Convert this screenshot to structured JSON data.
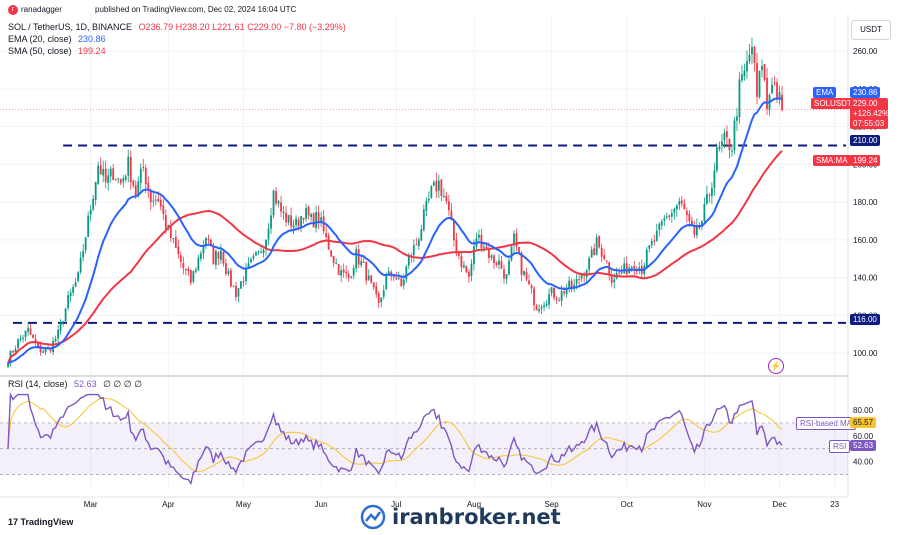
{
  "header": {
    "author": "ranadagger",
    "published": "published on TradingView.com, Dec 02, 2024 16:04 UTC"
  },
  "legend": {
    "symbol": "SOL / TetherUS, 1D, BINANCE",
    "open": "O236.79",
    "high": "H238.20",
    "low": "L221.61",
    "close": "C229.00",
    "change": "−7.80 (−3.29%)",
    "ema_label": "EMA (20, close)",
    "ema_value": "230.86",
    "sma_label": "SMA (50, close)",
    "sma_value": "199.24",
    "rsi_label": "RSI (14, close)",
    "rsi_value": "52.63",
    "rsi_extra": "∅ ∅ ∅ ∅"
  },
  "currency": "USDT",
  "tags": {
    "ema_name": "EMA",
    "ema_value": "230.86",
    "symbol_name": "SOLUSDT",
    "price": "229.00",
    "pct": "+126.42%",
    "countdown": "07:55:03",
    "level_upper": "210.00",
    "sma_name": "SMA:MA",
    "sma_value": "199.24",
    "level_lower": "116.00",
    "rsi_ma_name": "RSI-based MA",
    "rsi_ma_value": "65.57",
    "rsi_name": "RSI",
    "rsi_value": "52.63"
  },
  "watermark": "iranbroker.net",
  "tv_logo": "TradingView",
  "colors": {
    "up": "#089981",
    "down": "#f23645",
    "ema": "#2962ff",
    "sma": "#f23645",
    "rsi": "#7e57c2",
    "rsi_ma": "#f7c430",
    "level": "#0b1b7f",
    "band": "#7e57c2"
  },
  "chart_data": [
    {
      "type": "candlestick",
      "title": "SOL / TetherUS, 1D, BINANCE",
      "ylim": [
        90,
        268
      ],
      "y_ticks": [
        100,
        120,
        140,
        160,
        180,
        200,
        220,
        240,
        260
      ],
      "x_ticks": [
        {
          "day": 33,
          "label": "Mar"
        },
        {
          "day": 64,
          "label": "Apr"
        },
        {
          "day": 94,
          "label": "May"
        },
        {
          "day": 125,
          "label": "Jun"
        },
        {
          "day": 155,
          "label": "Jul"
        },
        {
          "day": 186,
          "label": "Aug"
        },
        {
          "day": 217,
          "label": "Sep"
        },
        {
          "day": 247,
          "label": "Oct"
        },
        {
          "day": 278,
          "label": "Nov"
        },
        {
          "day": 308,
          "label": "Dec"
        },
        {
          "day": 330,
          "label": "23"
        }
      ],
      "horizontal_levels": [
        210,
        116
      ],
      "anchors": [
        [
          0,
          97
        ],
        [
          4,
          106
        ],
        [
          8,
          112
        ],
        [
          12,
          102
        ],
        [
          16,
          101
        ],
        [
          20,
          110
        ],
        [
          24,
          128
        ],
        [
          28,
          140
        ],
        [
          32,
          170
        ],
        [
          36,
          200
        ],
        [
          39,
          190
        ],
        [
          42,
          196
        ],
        [
          45,
          190
        ],
        [
          48,
          200
        ],
        [
          51,
          185
        ],
        [
          54,
          198
        ],
        [
          57,
          182
        ],
        [
          60,
          182
        ],
        [
          63,
          168
        ],
        [
          66,
          158
        ],
        [
          70,
          145
        ],
        [
          73,
          138
        ],
        [
          76,
          150
        ],
        [
          79,
          162
        ],
        [
          82,
          150
        ],
        [
          85,
          155
        ],
        [
          88,
          140
        ],
        [
          91,
          132
        ],
        [
          94,
          140
        ],
        [
          97,
          147
        ],
        [
          100,
          152
        ],
        [
          103,
          162
        ],
        [
          106,
          185
        ],
        [
          109,
          175
        ],
        [
          112,
          170
        ],
        [
          115,
          168
        ],
        [
          118,
          175
        ],
        [
          121,
          170
        ],
        [
          124,
          172
        ],
        [
          127,
          160
        ],
        [
          130,
          150
        ],
        [
          133,
          142
        ],
        [
          136,
          140
        ],
        [
          139,
          152
        ],
        [
          142,
          145
        ],
        [
          145,
          135
        ],
        [
          148,
          125
        ],
        [
          151,
          140
        ],
        [
          154,
          142
        ],
        [
          157,
          135
        ],
        [
          160,
          150
        ],
        [
          163,
          158
        ],
        [
          166,
          172
        ],
        [
          169,
          185
        ],
        [
          172,
          190
        ],
        [
          175,
          180
        ],
        [
          178,
          160
        ],
        [
          181,
          148
        ],
        [
          184,
          140
        ],
        [
          187,
          162
        ],
        [
          190,
          158
        ],
        [
          193,
          150
        ],
        [
          196,
          148
        ],
        [
          199,
          140
        ],
        [
          202,
          160
        ],
        [
          205,
          145
        ],
        [
          208,
          135
        ],
        [
          211,
          125
        ],
        [
          214,
          128
        ],
        [
          217,
          132
        ],
        [
          220,
          130
        ],
        [
          223,
          135
        ],
        [
          226,
          135
        ],
        [
          229,
          142
        ],
        [
          232,
          148
        ],
        [
          235,
          158
        ],
        [
          238,
          152
        ],
        [
          241,
          140
        ],
        [
          244,
          142
        ],
        [
          247,
          145
        ],
        [
          250,
          148
        ],
        [
          253,
          145
        ],
        [
          256,
          155
        ],
        [
          259,
          162
        ],
        [
          262,
          170
        ],
        [
          265,
          175
        ],
        [
          268,
          180
        ],
        [
          271,
          172
        ],
        [
          274,
          160
        ],
        [
          277,
          170
        ],
        [
          280,
          185
        ],
        [
          283,
          205
        ],
        [
          286,
          212
        ],
        [
          289,
          210
        ],
        [
          292,
          240
        ],
        [
          295,
          252
        ],
        [
          297,
          263
        ],
        [
          299,
          235
        ],
        [
          301,
          255
        ],
        [
          303,
          230
        ],
        [
          305,
          246
        ],
        [
          307,
          238
        ],
        [
          309,
          229
        ]
      ],
      "ema": {
        "name": "EMA (20, close)",
        "last": 230.86
      },
      "sma": {
        "name": "SMA (50, close)",
        "last": 199.24
      }
    },
    {
      "type": "line",
      "title": "RSI (14, close)",
      "ylim": [
        18,
        94
      ],
      "y_ticks": [
        40,
        60,
        80
      ],
      "band": [
        30,
        70
      ],
      "series": [
        {
          "name": "RSI",
          "last": 52.63
        },
        {
          "name": "RSI-based MA",
          "last": 65.57
        }
      ]
    }
  ]
}
